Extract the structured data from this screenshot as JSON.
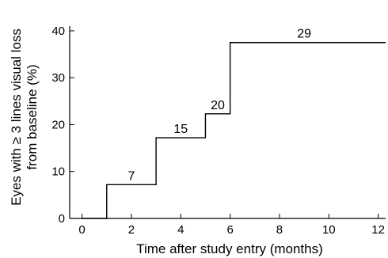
{
  "chart_data": {
    "type": "line",
    "style": "step",
    "xlabel": "Time after study entry (months)",
    "ylabel_lines": [
      "Eyes with ≥ 3 lines visual loss",
      "from baseline (%)"
    ],
    "xlim": [
      -0.5,
      12.3
    ],
    "ylim": [
      0,
      41
    ],
    "xticks": [
      0,
      2,
      4,
      6,
      8,
      10,
      12
    ],
    "yticks": [
      0,
      10,
      20,
      30,
      40
    ],
    "grid": false,
    "series": [
      {
        "x": [
          0,
          1,
          3,
          5,
          6,
          12
        ],
        "y": [
          0,
          7.2,
          17.2,
          22.3,
          37.5,
          37.5
        ]
      }
    ],
    "data_labels": [
      {
        "text": "7",
        "x": 2,
        "y": 7.2
      },
      {
        "text": "15",
        "x": 4,
        "y": 17.2
      },
      {
        "text": "20",
        "x": 5.5,
        "y": 22.3
      },
      {
        "text": "29",
        "x": 9,
        "y": 37.5
      }
    ]
  }
}
